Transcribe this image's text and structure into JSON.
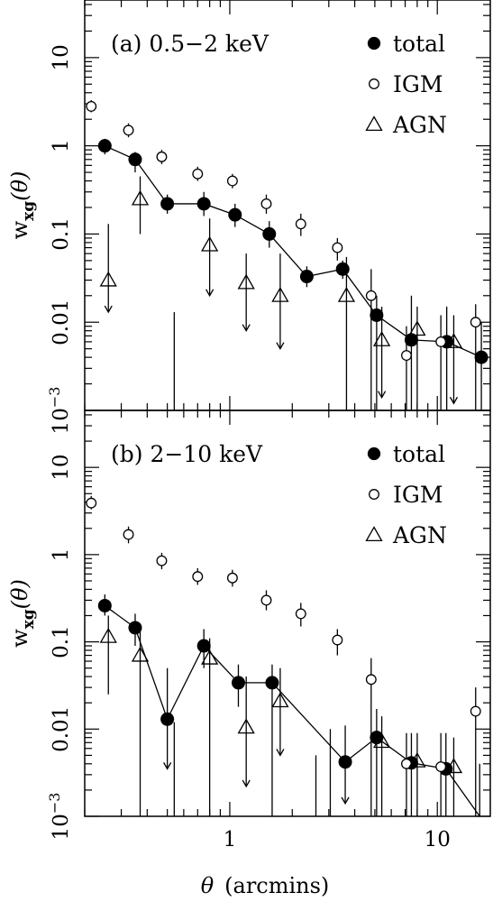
{
  "chart_data": {
    "type": "scatter",
    "xlabel_symbol": "θ",
    "xlabel_unit": "(arcmins)",
    "ylabel_base": "w",
    "ylabel_sub": "xg",
    "ylabel_arg": "(θ)",
    "xscale": "log",
    "yscale": "log",
    "xlim": [
      0.2,
      18
    ],
    "ylim": [
      0.001,
      45
    ],
    "xticks": [
      {
        "value": 1,
        "label": "1"
      },
      {
        "value": 10,
        "label": "10"
      }
    ],
    "yticks": [
      {
        "value": 10,
        "label": "10"
      },
      {
        "value": 1,
        "label": "1"
      },
      {
        "value": 0.1,
        "label": "0.1"
      },
      {
        "value": 0.01,
        "label": "0.01"
      },
      {
        "value": 0.001,
        "label_base": "10",
        "label_exp": "−3"
      }
    ],
    "legend": {
      "placement": "top-right",
      "entries": [
        {
          "marker": "filled-circle",
          "label": "total"
        },
        {
          "marker": "open-circle",
          "label": "IGM"
        },
        {
          "marker": "open-triangle",
          "label": "AGN"
        }
      ]
    },
    "panels": [
      {
        "id": "a",
        "label": "(a) 0.5−2 keV",
        "series": [
          {
            "name": "total",
            "marker": "filled-circle",
            "connected": true,
            "points": [
              {
                "x": 0.25,
                "y": 1.0,
                "lo": 0.8,
                "hi": 1.2
              },
              {
                "x": 0.35,
                "y": 0.7,
                "lo": 0.5,
                "hi": 0.85
              },
              {
                "x": 0.5,
                "y": 0.22,
                "lo": 0.17,
                "hi": 0.28
              },
              {
                "x": 0.75,
                "y": 0.22,
                "lo": 0.16,
                "hi": 0.3
              },
              {
                "x": 1.06,
                "y": 0.165,
                "lo": 0.12,
                "hi": 0.22
              },
              {
                "x": 1.55,
                "y": 0.1,
                "lo": 0.07,
                "hi": 0.14
              },
              {
                "x": 2.35,
                "y": 0.033,
                "lo": 0.025,
                "hi": 0.043
              },
              {
                "x": 3.5,
                "y": 0.04,
                "lo": 0.031,
                "hi": 0.05
              },
              {
                "x": 5.1,
                "y": 0.012,
                "lo": 0.0,
                "hi": 0.02
              },
              {
                "x": 7.5,
                "y": 0.0063,
                "lo": 0.0,
                "hi": 0.02
              },
              {
                "x": 11.1,
                "y": 0.006,
                "lo": 0.0,
                "hi": 0.015
              },
              {
                "x": 16.3,
                "y": 0.004,
                "lo": 0.0,
                "hi": 0.01
              }
            ]
          },
          {
            "name": "IGM",
            "marker": "open-circle",
            "connected": false,
            "points": [
              {
                "x": 0.215,
                "y": 2.8,
                "lo": 2.4,
                "hi": 3.3
              },
              {
                "x": 0.325,
                "y": 1.5,
                "lo": 1.25,
                "hi": 1.8
              },
              {
                "x": 0.47,
                "y": 0.75,
                "lo": 0.62,
                "hi": 0.9
              },
              {
                "x": 0.7,
                "y": 0.48,
                "lo": 0.4,
                "hi": 0.58
              },
              {
                "x": 1.03,
                "y": 0.4,
                "lo": 0.33,
                "hi": 0.48
              },
              {
                "x": 1.5,
                "y": 0.22,
                "lo": 0.17,
                "hi": 0.28
              },
              {
                "x": 2.2,
                "y": 0.13,
                "lo": 0.095,
                "hi": 0.17
              },
              {
                "x": 3.3,
                "y": 0.07,
                "lo": 0.05,
                "hi": 0.09
              },
              {
                "x": 4.8,
                "y": 0.02,
                "lo": 0.0,
                "hi": 0.04
              },
              {
                "x": 7.1,
                "y": 0.0042,
                "lo": 0.0,
                "hi": 0.009
              },
              {
                "x": 10.4,
                "y": 0.006,
                "lo": 0.0,
                "hi": 0.012
              },
              {
                "x": 15.3,
                "y": 0.01,
                "lo": 0.0,
                "hi": 0.016
              }
            ]
          },
          {
            "name": "AGN",
            "marker": "open-triangle",
            "connected": false,
            "points": [
              {
                "x": 0.26,
                "y": 0.03,
                "upper_limit": 0.013,
                "hi": 0.13
              },
              {
                "x": 0.37,
                "y": 0.25,
                "lo": 0.1,
                "hi": 0.45
              },
              {
                "x": 0.8,
                "y": 0.075,
                "upper_limit": 0.02,
                "hi": 0.15
              },
              {
                "x": 1.2,
                "y": 0.028,
                "upper_limit": 0.008,
                "hi": 0.06
              },
              {
                "x": 1.75,
                "y": 0.02,
                "upper_limit": 0.005,
                "hi": 0.06
              },
              {
                "x": 3.65,
                "y": 0.02,
                "lo": 0.0,
                "hi": 0.055
              },
              {
                "x": 5.4,
                "y": 0.0063,
                "upper_limit": 0.0014,
                "hi": 0.015
              },
              {
                "x": 8.0,
                "y": 0.0083,
                "lo": 0.0,
                "hi": 0.015
              },
              {
                "x": 12.0,
                "y": 0.006,
                "upper_limit": 0.0012,
                "hi": 0.012
              }
            ]
          }
        ],
        "extra_error_bars": [
          {
            "x": 0.54,
            "lo": 0.0,
            "hi": 0.013
          }
        ]
      },
      {
        "id": "b",
        "label": "(b) 2−10 keV",
        "series": [
          {
            "name": "total",
            "marker": "filled-circle",
            "connected": true,
            "points": [
              {
                "x": 0.25,
                "y": 0.26,
                "lo": 0.2,
                "hi": 0.35
              },
              {
                "x": 0.35,
                "y": 0.145,
                "lo": 0.09,
                "hi": 0.21
              },
              {
                "x": 0.5,
                "y": 0.013,
                "upper_limit": 0.0035,
                "hi": 0.05
              },
              {
                "x": 0.75,
                "y": 0.09,
                "lo": 0.05,
                "hi": 0.14
              },
              {
                "x": 1.1,
                "y": 0.034,
                "lo": 0.018,
                "hi": 0.055
              },
              {
                "x": 1.6,
                "y": 0.034,
                "lo": 0.0,
                "hi": 0.055
              },
              {
                "x": 3.6,
                "y": 0.0042,
                "upper_limit": 0.0014,
                "hi": 0.011
              },
              {
                "x": 5.1,
                "y": 0.008,
                "lo": 0.0,
                "hi": 0.017
              },
              {
                "x": 7.5,
                "y": 0.0041,
                "lo": 0.0,
                "hi": 0.009
              },
              {
                "x": 11.0,
                "y": 0.0035,
                "lo": 0.0,
                "hi": 0.009
              },
              {
                "x": 16.0,
                "y": 0.0008,
                "lo": 0.0,
                "hi": 0.004
              }
            ]
          },
          {
            "name": "IGM",
            "marker": "open-circle",
            "connected": false,
            "points": [
              {
                "x": 0.215,
                "y": 3.9,
                "lo": 3.3,
                "hi": 4.7
              },
              {
                "x": 0.325,
                "y": 1.7,
                "lo": 1.35,
                "hi": 2.1
              },
              {
                "x": 0.47,
                "y": 0.85,
                "lo": 0.68,
                "hi": 1.05
              },
              {
                "x": 0.7,
                "y": 0.56,
                "lo": 0.45,
                "hi": 0.7
              },
              {
                "x": 1.03,
                "y": 0.54,
                "lo": 0.43,
                "hi": 0.67
              },
              {
                "x": 1.5,
                "y": 0.3,
                "lo": 0.23,
                "hi": 0.39
              },
              {
                "x": 2.2,
                "y": 0.21,
                "lo": 0.15,
                "hi": 0.28
              },
              {
                "x": 3.3,
                "y": 0.105,
                "lo": 0.07,
                "hi": 0.14
              },
              {
                "x": 4.8,
                "y": 0.037,
                "lo": 0.0,
                "hi": 0.065
              },
              {
                "x": 7.1,
                "y": 0.004,
                "lo": 0.0,
                "hi": 0.009
              },
              {
                "x": 10.4,
                "y": 0.0037,
                "lo": 0.0,
                "hi": 0.009
              },
              {
                "x": 15.3,
                "y": 0.016,
                "lo": 0.0,
                "hi": 0.03
              }
            ]
          },
          {
            "name": "AGN",
            "marker": "open-triangle",
            "connected": false,
            "points": [
              {
                "x": 0.26,
                "y": 0.115,
                "lo": 0.025,
                "hi": 0.2
              },
              {
                "x": 0.37,
                "y": 0.07,
                "lo": 0.0,
                "hi": 0.13
              },
              {
                "x": 0.8,
                "y": 0.065,
                "lo": 0.0,
                "hi": 0.11
              },
              {
                "x": 1.2,
                "y": 0.0105,
                "upper_limit": 0.0022,
                "hi": 0.04
              },
              {
                "x": 1.75,
                "y": 0.021,
                "upper_limit": 0.005,
                "hi": 0.05
              },
              {
                "x": 5.4,
                "y": 0.0072,
                "lo": 0.0,
                "hi": 0.014
              },
              {
                "x": 8.0,
                "y": 0.0043,
                "lo": 0.0,
                "hi": 0.009
              },
              {
                "x": 12.0,
                "y": 0.0037,
                "lo": 0.0,
                "hi": 0.008
              }
            ]
          }
        ],
        "extra_error_bars": [
          {
            "x": 0.54,
            "lo": 0.0,
            "hi": 0.012
          },
          {
            "x": 2.6,
            "lo": 0.0,
            "hi": 0.005
          },
          {
            "x": 3.05,
            "lo": 0.0,
            "hi": 0.01
          }
        ]
      }
    ]
  }
}
